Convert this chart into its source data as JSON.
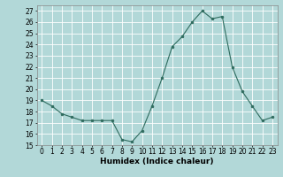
{
  "x": [
    0,
    1,
    2,
    3,
    4,
    5,
    6,
    7,
    8,
    9,
    10,
    11,
    12,
    13,
    14,
    15,
    16,
    17,
    18,
    19,
    20,
    21,
    22,
    23
  ],
  "y": [
    19.0,
    18.5,
    17.8,
    17.5,
    17.2,
    17.2,
    17.2,
    17.2,
    15.5,
    15.3,
    16.3,
    18.5,
    21.0,
    23.8,
    24.7,
    26.0,
    27.0,
    26.3,
    26.5,
    22.0,
    19.8,
    18.5,
    17.2,
    17.5
  ],
  "xlabel": "Humidex (Indice chaleur)",
  "ylim": [
    15,
    27.5
  ],
  "yticks": [
    15,
    16,
    17,
    18,
    19,
    20,
    21,
    22,
    23,
    24,
    25,
    26,
    27
  ],
  "xticks": [
    0,
    1,
    2,
    3,
    4,
    5,
    6,
    7,
    8,
    9,
    10,
    11,
    12,
    13,
    14,
    15,
    16,
    17,
    18,
    19,
    20,
    21,
    22,
    23
  ],
  "line_color": "#2e6b5e",
  "marker_color": "#2e6b5e",
  "bg_color": "#b2d8d8",
  "grid_color": "#ffffff",
  "tick_fontsize": 5.5,
  "label_fontsize": 6.5
}
